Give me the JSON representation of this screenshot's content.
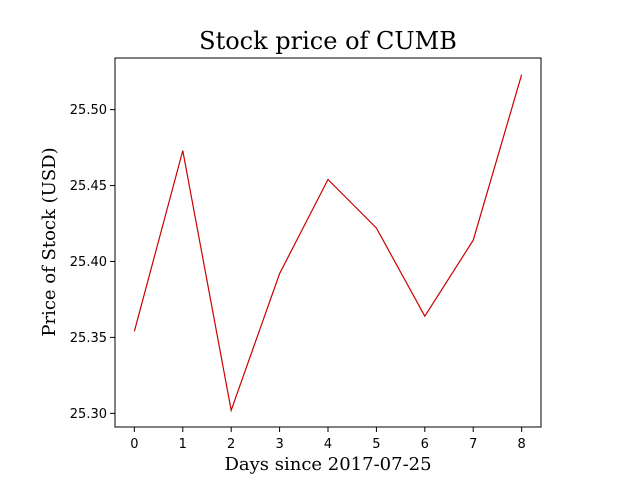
{
  "chart_data": {
    "type": "line",
    "title": "Stock price of CUMB",
    "xlabel": "Days since 2017-07-25",
    "ylabel": "Price of Stock (USD)",
    "x": [
      0,
      1,
      2,
      3,
      4,
      5,
      6,
      7,
      8
    ],
    "series": [
      {
        "values": [
          25.354,
          25.473,
          25.302,
          25.392,
          25.454,
          25.422,
          25.364,
          25.414,
          25.523
        ],
        "color": "#cc0000"
      }
    ],
    "xlim": [
      -0.4,
      8.4
    ],
    "ylim": [
      25.291,
      25.534
    ],
    "x_ticks": [
      "0",
      "1",
      "2",
      "3",
      "4",
      "5",
      "6",
      "7",
      "8"
    ],
    "y_ticks": [
      "25.30",
      "25.35",
      "25.40",
      "25.45",
      "25.50"
    ],
    "grid": false,
    "legend": "none"
  }
}
